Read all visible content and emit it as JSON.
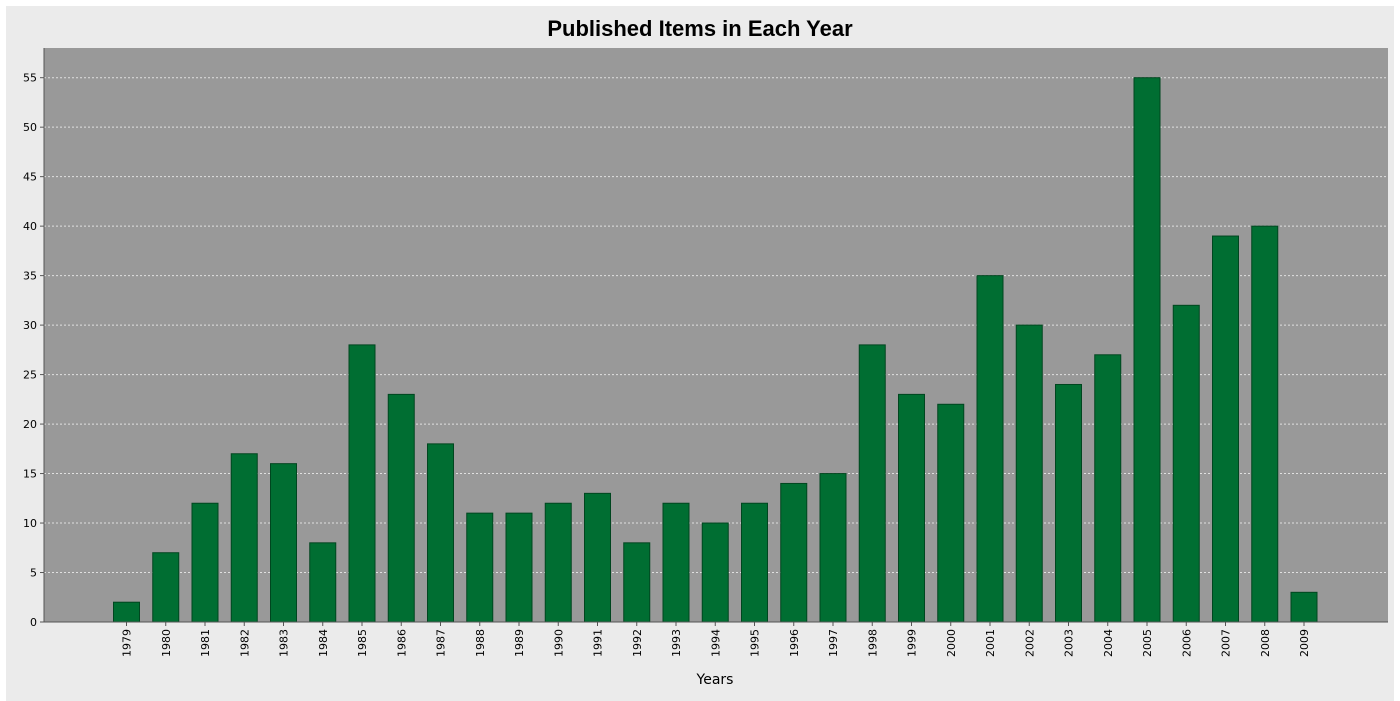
{
  "chart_data": {
    "type": "bar",
    "title": "Published Items in Each Year",
    "xlabel": "Years",
    "ylabel": "",
    "ylim": [
      0,
      58
    ],
    "yticks": [
      0,
      5,
      10,
      15,
      20,
      25,
      30,
      35,
      40,
      45,
      50,
      55
    ],
    "grid": true,
    "legend": "none",
    "categories": [
      "1979",
      "1980",
      "1981",
      "1982",
      "1983",
      "1984",
      "1985",
      "1986",
      "1987",
      "1988",
      "1989",
      "1990",
      "1991",
      "1992",
      "1993",
      "1994",
      "1995",
      "1996",
      "1997",
      "1998",
      "1999",
      "2000",
      "2001",
      "2002",
      "2003",
      "2004",
      "2005",
      "2006",
      "2007",
      "2008",
      "2009"
    ],
    "values": [
      2,
      7,
      12,
      17,
      16,
      8,
      28,
      23,
      18,
      11,
      11,
      12,
      13,
      8,
      12,
      10,
      12,
      14,
      15,
      28,
      23,
      22,
      35,
      30,
      24,
      27,
      55,
      32,
      39,
      40,
      3
    ],
    "colors": {
      "bar": "#006e32",
      "bar_edge": "#00461f",
      "plot_background": "#999999",
      "panel_background": "#ebebeb",
      "gridline": "#e0e0e0",
      "axis": "#555555",
      "text": "#000000"
    }
  }
}
